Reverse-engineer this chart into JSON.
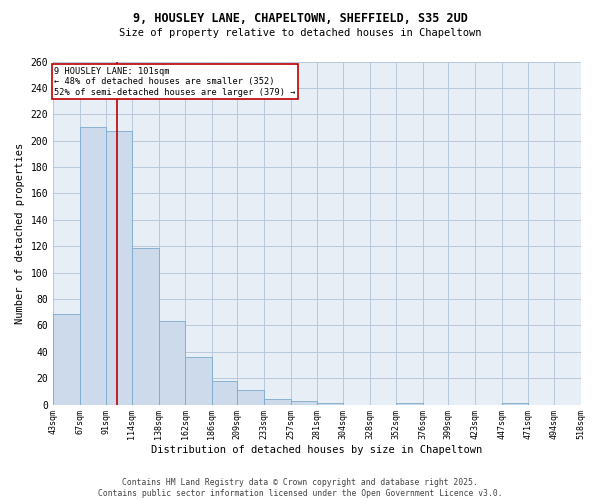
{
  "title_line1": "9, HOUSLEY LANE, CHAPELTOWN, SHEFFIELD, S35 2UD",
  "title_line2": "Size of property relative to detached houses in Chapeltown",
  "xlabel": "Distribution of detached houses by size in Chapeltown",
  "ylabel": "Number of detached properties",
  "bin_edges": [
    43,
    67,
    91,
    114,
    138,
    162,
    186,
    209,
    233,
    257,
    281,
    304,
    328,
    352,
    376,
    399,
    423,
    447,
    471,
    494,
    518
  ],
  "bar_heights": [
    69,
    210,
    207,
    119,
    63,
    36,
    18,
    11,
    4,
    3,
    1,
    0,
    0,
    1,
    0,
    0,
    0,
    1,
    0,
    0
  ],
  "tick_labels": [
    "43sqm",
    "67sqm",
    "91sqm",
    "114sqm",
    "138sqm",
    "162sqm",
    "186sqm",
    "209sqm",
    "233sqm",
    "257sqm",
    "281sqm",
    "304sqm",
    "328sqm",
    "352sqm",
    "376sqm",
    "399sqm",
    "423sqm",
    "447sqm",
    "471sqm",
    "494sqm",
    "518sqm"
  ],
  "bar_color": "#ccdaeb",
  "bar_edge_color": "#7aaacb",
  "grid_color": "#b8c8de",
  "bg_color": "#e8eef6",
  "vline_x": 101,
  "vline_color": "#bb0000",
  "annotation_text": "9 HOUSLEY LANE: 101sqm\n← 48% of detached houses are smaller (352)\n52% of semi-detached houses are larger (379) →",
  "annotation_box_color": "#bb0000",
  "footer_line1": "Contains HM Land Registry data © Crown copyright and database right 2025.",
  "footer_line2": "Contains public sector information licensed under the Open Government Licence v3.0.",
  "ylim": [
    0,
    260
  ],
  "yticks": [
    0,
    20,
    40,
    60,
    80,
    100,
    120,
    140,
    160,
    180,
    200,
    220,
    240,
    260
  ]
}
